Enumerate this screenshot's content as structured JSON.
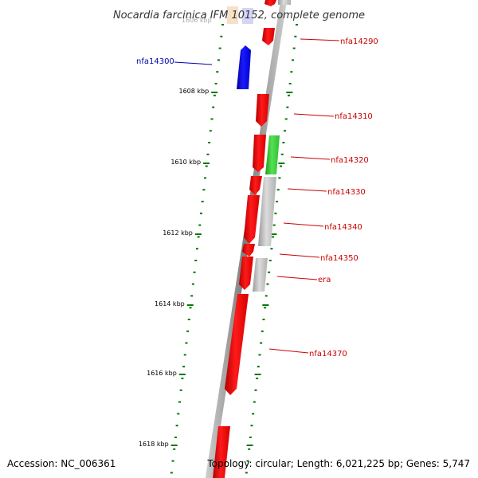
{
  "title": "Nocardia farcinica IFM 10152, complete genome",
  "footer": {
    "accession": "Accession: NC_006361",
    "summary": "Topology: circular; Length: 6,021,225 bp; Genes: 5,747"
  },
  "colors": {
    "forward_gene": "#ff0000",
    "reverse_gene": "#0000ff",
    "highlight_gene": "#33cc33",
    "other_gene": "#c0c0c0",
    "backbone": "#888888",
    "ticks": "#007700",
    "forward_label": "#cc0000",
    "reverse_label": "#0000aa"
  },
  "scale": {
    "partial_top_label": "1606 kbp",
    "ticks": [
      {
        "label": "1608 kbp"
      },
      {
        "label": "1610 kbp"
      },
      {
        "label": "1612 kbp"
      },
      {
        "label": "1614 kbp"
      },
      {
        "label": "1616 kbp"
      },
      {
        "label": "1618 kbp"
      }
    ]
  },
  "genes": [
    {
      "label": "nfa14290",
      "strand": "forward"
    },
    {
      "label": "nfa14300",
      "strand": "reverse"
    },
    {
      "label": "nfa14310",
      "strand": "forward"
    },
    {
      "label": "nfa14320",
      "strand": "forward"
    },
    {
      "label": "nfa14330",
      "strand": "forward"
    },
    {
      "label": "nfa14340",
      "strand": "forward"
    },
    {
      "label": "nfa14350",
      "strand": "forward"
    },
    {
      "label": "era",
      "strand": "forward"
    },
    {
      "label": "nfa14370",
      "strand": "forward"
    }
  ]
}
